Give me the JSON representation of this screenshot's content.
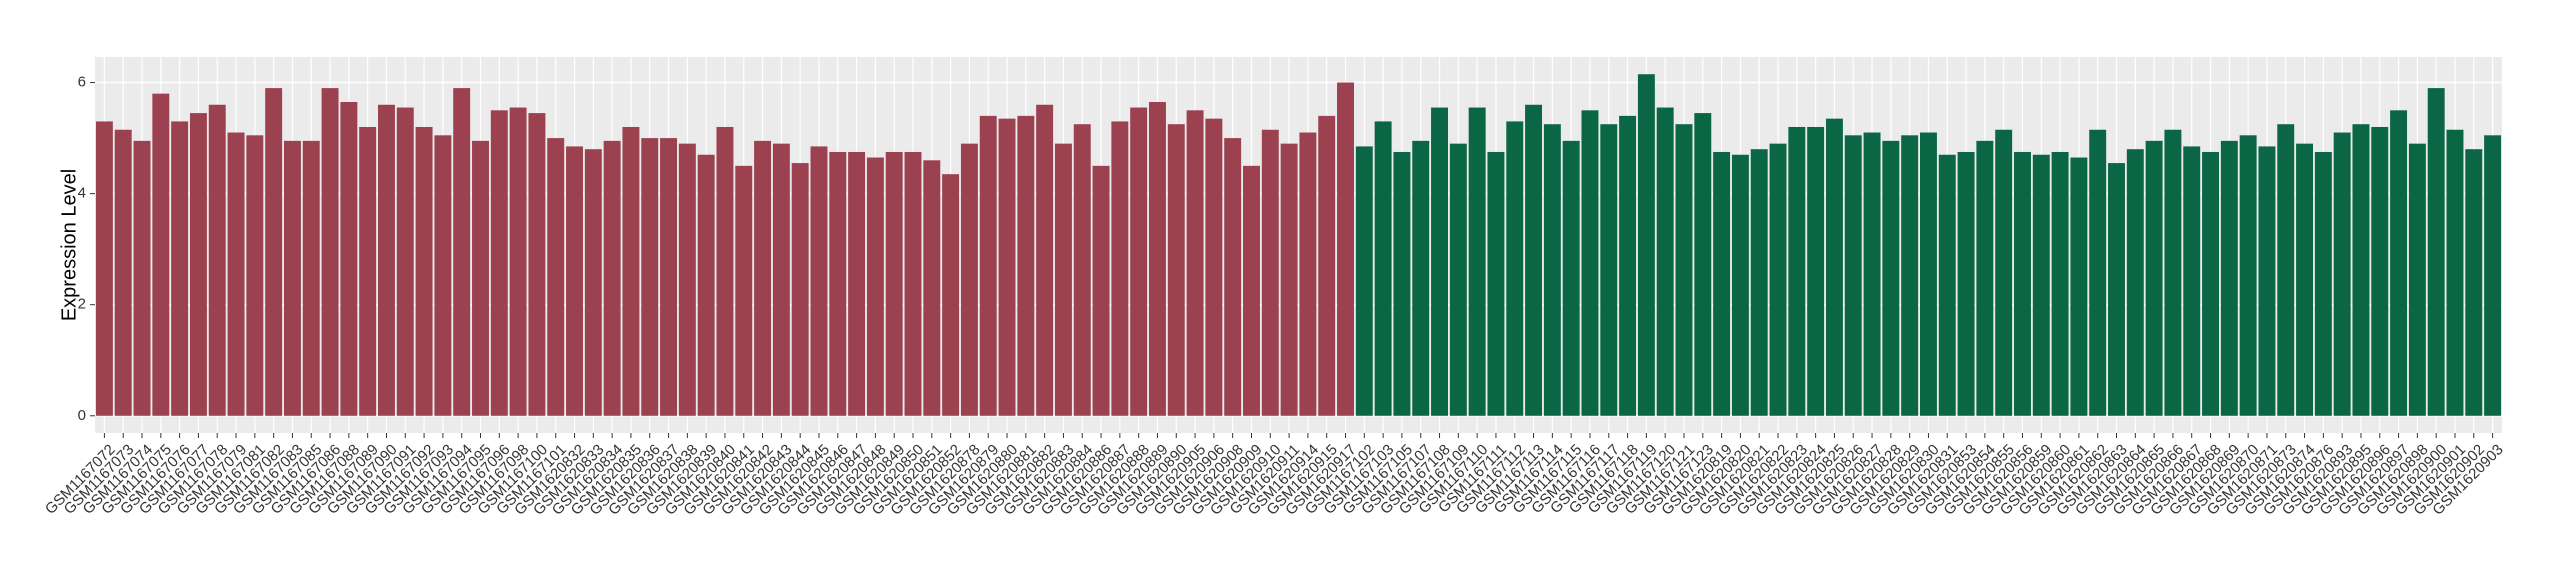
{
  "chart_data": {
    "type": "bar",
    "y_label": "Expression Level",
    "categories": [
      "GSM1167072",
      "GSM1167073",
      "GSM1167074",
      "GSM1167075",
      "GSM1167076",
      "GSM1167077",
      "GSM1167078",
      "GSM1167079",
      "GSM1167081",
      "GSM1167082",
      "GSM1167083",
      "GSM1167085",
      "GSM1167086",
      "GSM1167088",
      "GSM1167089",
      "GSM1167090",
      "GSM1167091",
      "GSM1167092",
      "GSM1167093",
      "GSM1167094",
      "GSM1167095",
      "GSM1167096",
      "GSM1167098",
      "GSM1167100",
      "GSM1167101",
      "GSM1620832",
      "GSM1620833",
      "GSM1620834",
      "GSM1620835",
      "GSM1620836",
      "GSM1620837",
      "GSM1620838",
      "GSM1620839",
      "GSM1620840",
      "GSM1620841",
      "GSM1620842",
      "GSM1620843",
      "GSM1620844",
      "GSM1620845",
      "GSM1620846",
      "GSM1620847",
      "GSM1620848",
      "GSM1620849",
      "GSM1620850",
      "GSM1620851",
      "GSM1620852",
      "GSM1620878",
      "GSM1620879",
      "GSM1620880",
      "GSM1620881",
      "GSM1620882",
      "GSM1620883",
      "GSM1620884",
      "GSM1620886",
      "GSM1620887",
      "GSM1620888",
      "GSM1620889",
      "GSM1620890",
      "GSM1620905",
      "GSM1620906",
      "GSM1620908",
      "GSM1620909",
      "GSM1620910",
      "GSM1620911",
      "GSM1620914",
      "GSM1620915",
      "GSM1620917",
      "GSM1167102",
      "GSM1167103",
      "GSM1167105",
      "GSM1167107",
      "GSM1167108",
      "GSM1167109",
      "GSM1167110",
      "GSM1167111",
      "GSM1167112",
      "GSM1167113",
      "GSM1167114",
      "GSM1167115",
      "GSM1167116",
      "GSM1167117",
      "GSM1167118",
      "GSM1167119",
      "GSM1167120",
      "GSM1167121",
      "GSM1167123",
      "GSM1620819",
      "GSM1620820",
      "GSM1620821",
      "GSM1620822",
      "GSM1620823",
      "GSM1620824",
      "GSM1620825",
      "GSM1620826",
      "GSM1620827",
      "GSM1620828",
      "GSM1620829",
      "GSM1620830",
      "GSM1620831",
      "GSM1620853",
      "GSM1620854",
      "GSM1620855",
      "GSM1620856",
      "GSM1620859",
      "GSM1620860",
      "GSM1620861",
      "GSM1620862",
      "GSM1620863",
      "GSM1620864",
      "GSM1620865",
      "GSM1620866",
      "GSM1620867",
      "GSM1620868",
      "GSM1620869",
      "GSM1620870",
      "GSM1620871",
      "GSM1620873",
      "GSM1620874",
      "GSM1620876",
      "GSM1620893",
      "GSM1620895",
      "GSM1620896",
      "GSM1620897",
      "GSM1620898",
      "GSM1620900",
      "GSM1620901",
      "GSM1620902",
      "GSM1620903"
    ],
    "values": [
      5.3,
      5.15,
      4.95,
      5.8,
      5.3,
      5.45,
      5.6,
      5.1,
      5.05,
      5.9,
      4.95,
      4.95,
      5.9,
      5.65,
      5.2,
      5.6,
      5.55,
      5.2,
      5.05,
      5.9,
      4.95,
      5.5,
      5.55,
      5.45,
      5.0,
      4.85,
      4.8,
      4.95,
      5.2,
      5.0,
      5.0,
      4.9,
      4.7,
      5.2,
      4.5,
      4.95,
      4.9,
      4.55,
      4.85,
      4.75,
      4.75,
      4.65,
      4.75,
      4.75,
      4.6,
      4.35,
      4.9,
      5.4,
      5.35,
      5.4,
      5.6,
      4.9,
      5.25,
      4.5,
      5.3,
      5.55,
      5.65,
      5.25,
      5.5,
      5.35,
      5.0,
      4.5,
      5.15,
      4.9,
      5.1,
      5.4,
      6.0,
      4.85,
      5.3,
      4.75,
      4.95,
      5.55,
      4.9,
      5.55,
      4.75,
      5.3,
      5.6,
      5.25,
      4.95,
      5.5,
      5.25,
      5.4,
      6.15,
      5.55,
      5.25,
      5.45,
      4.75,
      4.7,
      4.8,
      4.9,
      5.2,
      5.2,
      5.35,
      5.05,
      5.1,
      4.95,
      5.05,
      5.1,
      4.7,
      4.75,
      4.95,
      5.15,
      4.75,
      4.7,
      4.75,
      4.65,
      5.15,
      4.55,
      4.8,
      4.95,
      5.15,
      4.85,
      4.75,
      4.95,
      5.05,
      4.85,
      5.25,
      4.9,
      4.75,
      5.1,
      5.25,
      5.2,
      5.5,
      4.9,
      5.9,
      5.15,
      4.8,
      5.05
    ],
    "colors": [
      "#9b4150",
      "#9b4150",
      "#9b4150",
      "#9b4150",
      "#9b4150",
      "#9b4150",
      "#9b4150",
      "#9b4150",
      "#9b4150",
      "#9b4150",
      "#9b4150",
      "#9b4150",
      "#9b4150",
      "#9b4150",
      "#9b4150",
      "#9b4150",
      "#9b4150",
      "#9b4150",
      "#9b4150",
      "#9b4150",
      "#9b4150",
      "#9b4150",
      "#9b4150",
      "#9b4150",
      "#9b4150",
      "#9b4150",
      "#9b4150",
      "#9b4150",
      "#9b4150",
      "#9b4150",
      "#9b4150",
      "#9b4150",
      "#9b4150",
      "#9b4150",
      "#9b4150",
      "#9b4150",
      "#9b4150",
      "#9b4150",
      "#9b4150",
      "#9b4150",
      "#9b4150",
      "#9b4150",
      "#9b4150",
      "#9b4150",
      "#9b4150",
      "#9b4150",
      "#9b4150",
      "#9b4150",
      "#9b4150",
      "#9b4150",
      "#9b4150",
      "#9b4150",
      "#9b4150",
      "#9b4150",
      "#9b4150",
      "#9b4150",
      "#9b4150",
      "#9b4150",
      "#9b4150",
      "#9b4150",
      "#9b4150",
      "#9b4150",
      "#9b4150",
      "#9b4150",
      "#9b4150",
      "#9b4150",
      "#9b4150",
      "#0a6645",
      "#0a6645",
      "#0a6645",
      "#0a6645",
      "#0a6645",
      "#0a6645",
      "#0a6645",
      "#0a6645",
      "#0a6645",
      "#0a6645",
      "#0a6645",
      "#0a6645",
      "#0a6645",
      "#0a6645",
      "#0a6645",
      "#0a6645",
      "#0a6645",
      "#0a6645",
      "#0a6645",
      "#0a6645",
      "#0a6645",
      "#0a6645",
      "#0a6645",
      "#0a6645",
      "#0a6645",
      "#0a6645",
      "#0a6645",
      "#0a6645",
      "#0a6645",
      "#0a6645",
      "#0a6645",
      "#0a6645",
      "#0a6645",
      "#0a6645",
      "#0a6645",
      "#0a6645",
      "#0a6645",
      "#0a6645",
      "#0a6645",
      "#0a6645",
      "#0a6645",
      "#0a6645",
      "#0a6645",
      "#0a6645",
      "#0a6645",
      "#0a6645",
      "#0a6645",
      "#0a6645",
      "#0a6645",
      "#0a6645",
      "#0a6645",
      "#0a6645",
      "#0a6645",
      "#0a6645",
      "#0a6645",
      "#0a6645",
      "#0a6645",
      "#0a6645",
      "#0a6645",
      "#0a6645",
      "#0a6645"
    ],
    "ylim": [
      -0.31,
      6.46
    ],
    "yticks": [
      0,
      2,
      4,
      6
    ],
    "grid": true
  }
}
